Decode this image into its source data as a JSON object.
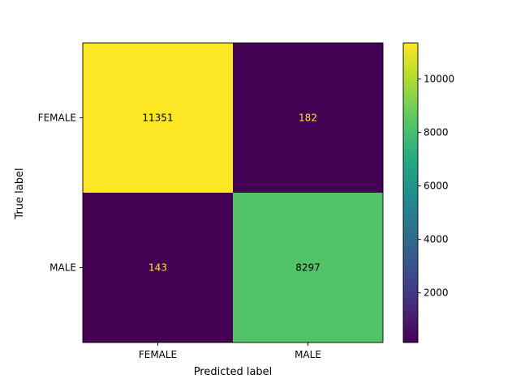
{
  "chart_data": {
    "type": "heatmap",
    "title": "",
    "xlabel": "Predicted label",
    "ylabel": "True label",
    "x_categories": [
      "FEMALE",
      "MALE"
    ],
    "y_categories": [
      "FEMALE",
      "MALE"
    ],
    "values": [
      [
        11351,
        182
      ],
      [
        143,
        8297
      ]
    ],
    "cell_labels": [
      [
        "11351",
        "182"
      ],
      [
        "143",
        "8297"
      ]
    ],
    "colormap": "viridis",
    "colorbar": {
      "range": [
        143,
        11351
      ],
      "ticks": [
        2000,
        4000,
        6000,
        8000,
        10000
      ],
      "tick_labels": [
        "2000",
        "4000",
        "6000",
        "8000",
        "10000"
      ]
    },
    "text_colors": {
      "on_dark": "#fde725",
      "on_light": "#000000"
    },
    "grid": false
  }
}
